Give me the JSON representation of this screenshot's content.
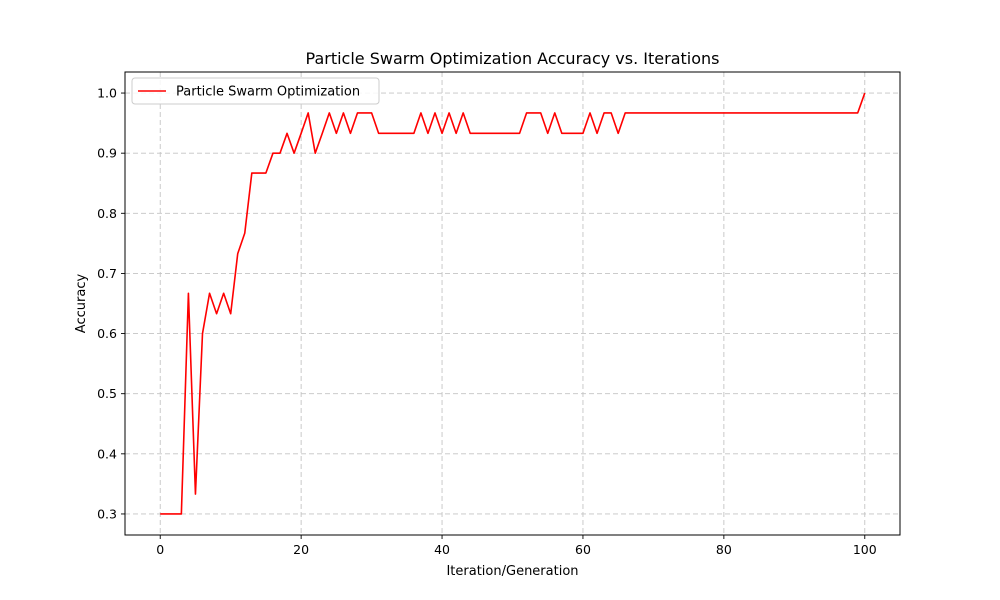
{
  "chart_data": {
    "type": "line",
    "title": "Particle Swarm Optimization Accuracy vs. Iterations",
    "xlabel": "Iteration/Generation",
    "ylabel": "Accuracy",
    "xlim": [
      -5,
      105
    ],
    "ylim": [
      0.265,
      1.035
    ],
    "xticks": [
      0,
      20,
      40,
      60,
      80,
      100
    ],
    "xtick_labels": [
      "0",
      "20",
      "40",
      "60",
      "80",
      "100"
    ],
    "yticks": [
      0.3,
      0.4,
      0.5,
      0.6,
      0.7,
      0.8,
      0.9,
      1.0
    ],
    "ytick_labels": [
      "0.3",
      "0.4",
      "0.5",
      "0.6",
      "0.7",
      "0.8",
      "0.9",
      "1.0"
    ],
    "grid": true,
    "legend_position": "top-left",
    "colors": {
      "series": "#ff0000",
      "grid": "#c4c4c4",
      "axes": "#000000"
    },
    "series": [
      {
        "name": "Particle Swarm Optimization",
        "x": [
          0,
          1,
          2,
          3,
          4,
          5,
          6,
          7,
          8,
          9,
          10,
          11,
          12,
          13,
          14,
          15,
          16,
          17,
          18,
          19,
          20,
          21,
          22,
          23,
          24,
          25,
          26,
          27,
          28,
          29,
          30,
          31,
          32,
          33,
          34,
          35,
          36,
          37,
          38,
          39,
          40,
          41,
          42,
          43,
          44,
          45,
          46,
          47,
          48,
          49,
          50,
          51,
          52,
          53,
          54,
          55,
          56,
          57,
          58,
          59,
          60,
          61,
          62,
          63,
          64,
          65,
          66,
          67,
          68,
          69,
          70,
          71,
          72,
          73,
          74,
          75,
          76,
          77,
          78,
          79,
          80,
          81,
          82,
          83,
          84,
          85,
          86,
          87,
          88,
          89,
          90,
          91,
          92,
          93,
          94,
          95,
          96,
          97,
          98,
          99,
          100
        ],
        "values": [
          0.3,
          0.3,
          0.3,
          0.3,
          0.667,
          0.333,
          0.6,
          0.667,
          0.633,
          0.667,
          0.633,
          0.733,
          0.767,
          0.867,
          0.867,
          0.867,
          0.9,
          0.9,
          0.933,
          0.9,
          0.933,
          0.967,
          0.9,
          0.933,
          0.967,
          0.933,
          0.967,
          0.933,
          0.967,
          0.967,
          0.967,
          0.933,
          0.933,
          0.933,
          0.933,
          0.933,
          0.933,
          0.967,
          0.933,
          0.967,
          0.933,
          0.967,
          0.933,
          0.967,
          0.933,
          0.933,
          0.933,
          0.933,
          0.933,
          0.933,
          0.933,
          0.933,
          0.967,
          0.967,
          0.967,
          0.933,
          0.967,
          0.933,
          0.933,
          0.933,
          0.933,
          0.967,
          0.933,
          0.967,
          0.967,
          0.933,
          0.967,
          0.967,
          0.967,
          0.967,
          0.967,
          0.967,
          0.967,
          0.967,
          0.967,
          0.967,
          0.967,
          0.967,
          0.967,
          0.967,
          0.967,
          0.967,
          0.967,
          0.967,
          0.967,
          0.967,
          0.967,
          0.967,
          0.967,
          0.967,
          0.967,
          0.967,
          0.967,
          0.967,
          0.967,
          0.967,
          0.967,
          0.967,
          0.967,
          0.967,
          1.0
        ]
      }
    ]
  }
}
